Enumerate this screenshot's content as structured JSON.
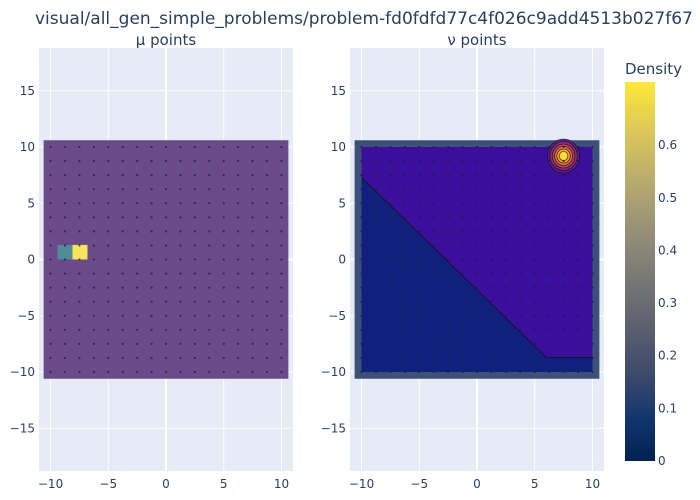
{
  "title": "visual/all_gen_simple_problems/problem-fd0fdfd77c4f026c9add4513b027f67",
  "colors": {
    "plot_bg": "#e5ecf6",
    "grid": "#ffffff",
    "mu_background": "#6b4a8a",
    "mu_cell_teal": "#4f8c97",
    "mu_cell_yellow": "#f4e55a",
    "v_frame": "#3d5077",
    "v_region_upper": "#3b0f9c",
    "v_region_lower": "#10207d",
    "dot": "#1c1c3c",
    "contour_line": "#111111"
  },
  "chart_data": [
    {
      "type": "heatmap",
      "subtitle": "μ points",
      "xlim": [
        -11,
        11
      ],
      "ylim": [
        -18.8,
        18.8
      ],
      "xticks": [
        -10,
        -5,
        0,
        5,
        10
      ],
      "yticks": [
        15,
        10,
        5,
        0,
        -5,
        -10,
        -15
      ],
      "xtick_labels": [
        "−10",
        "−5",
        "0",
        "5",
        "10"
      ],
      "ytick_labels": [
        "15",
        "10",
        "5",
        "0",
        "−5",
        "−10",
        "−15"
      ],
      "grid": true,
      "cell_range": [
        -10.6,
        10.6
      ],
      "points_step": 1.25,
      "points_range": [
        -10,
        10
      ],
      "highlight_cells": [
        {
          "x0": -9.4,
          "x1": -8.1,
          "y0": 0.0,
          "y1": 1.3,
          "color_key": "mu_cell_teal",
          "value": 0.3
        },
        {
          "x0": -8.1,
          "x1": -6.8,
          "y0": 0.0,
          "y1": 1.3,
          "color_key": "mu_cell_yellow",
          "value": 0.65
        }
      ]
    },
    {
      "type": "heatmap",
      "subtitle": "ν points",
      "xlim": [
        -11,
        11
      ],
      "ylim": [
        -18.8,
        18.8
      ],
      "xticks": [
        -10,
        -5,
        0,
        5,
        10
      ],
      "yticks": [
        15,
        10,
        5,
        0,
        -5,
        -10,
        -15
      ],
      "xtick_labels": [
        "−10",
        "−5",
        "0",
        "5",
        "10"
      ],
      "ytick_labels": [
        "15",
        "10",
        "5",
        "0",
        "−5",
        "−10",
        "−15"
      ],
      "grid": true,
      "frame_range": [
        -10.6,
        10.6
      ],
      "inner_range": [
        -10,
        10
      ],
      "points_step": 1.25,
      "points_range": [
        -10,
        10
      ],
      "boundary_line": [
        [
          -10,
          7.3
        ],
        [
          -9,
          6.3
        ],
        [
          -7,
          4.3
        ],
        [
          -5,
          2.3
        ],
        [
          -3,
          0.3
        ],
        [
          -1,
          -1.7
        ],
        [
          1,
          -3.7
        ],
        [
          3,
          -5.7
        ],
        [
          5,
          -7.7
        ],
        [
          6,
          -8.7
        ],
        [
          7,
          -8.7
        ],
        [
          10,
          -8.7
        ]
      ],
      "peak": {
        "x": 7.5,
        "y": 9.2,
        "max_density": 0.7
      }
    }
  ],
  "colorbar": {
    "title": "Density",
    "range": [
      0,
      0.72
    ],
    "ticks": [
      0,
      0.1,
      0.2,
      0.3,
      0.4,
      0.5,
      0.6
    ],
    "tick_labels": [
      "0",
      "0.1",
      "0.2",
      "0.3",
      "0.4",
      "0.5",
      "0.6"
    ],
    "colorscale": [
      "#00224e",
      "#123570",
      "#3b496c",
      "#575d6d",
      "#707173",
      "#8a8678",
      "#a59c74",
      "#c3b369",
      "#e1cc55",
      "#fee838"
    ]
  }
}
